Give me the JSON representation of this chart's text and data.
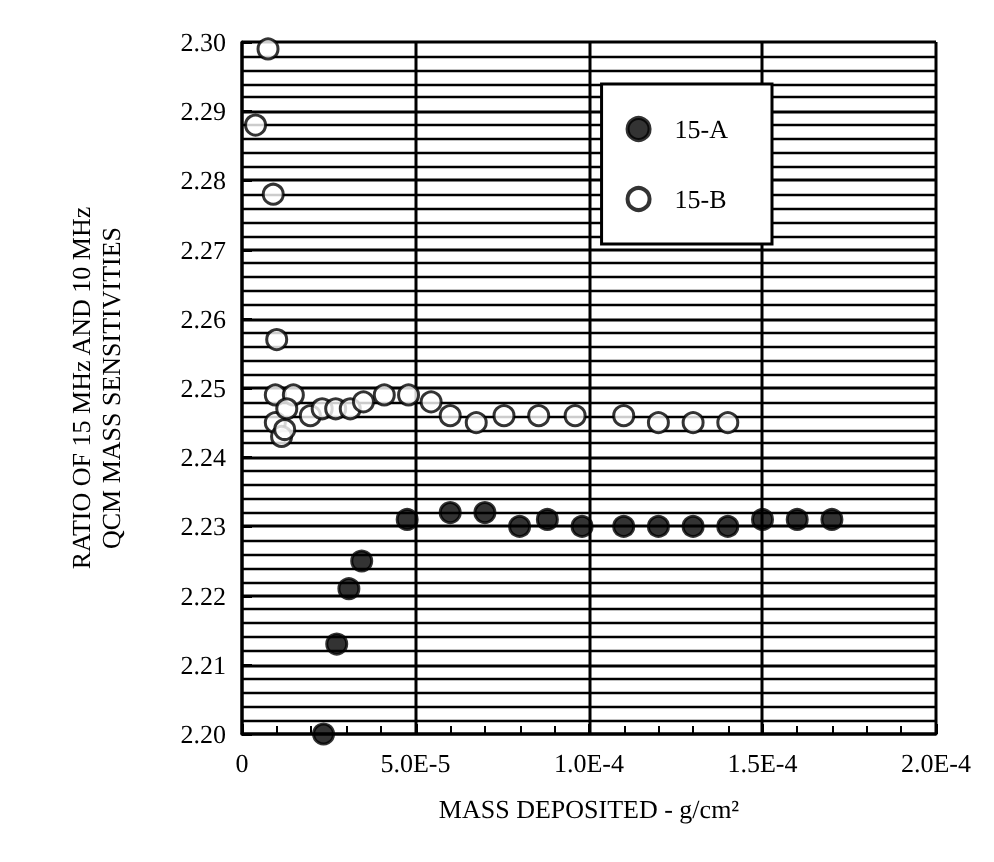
{
  "chart_data": {
    "type": "scatter",
    "xlabel": "MASS DEPOSITED - g/cm²",
    "ylabel": "RATIO OF 15 MHz AND 10 MHz\nQCM MASS SENSITIVITIES",
    "xlim": [
      0,
      0.0002
    ],
    "xticks": [
      {
        "value": 0,
        "label": "0"
      },
      {
        "value": 5e-05,
        "label": "5.0E-5"
      },
      {
        "value": 0.0001,
        "label": "1.0E-4"
      },
      {
        "value": 0.00015,
        "label": "1.5E-4"
      },
      {
        "value": 0.0002,
        "label": "2.0E-4"
      }
    ],
    "ylim": [
      2.2,
      2.3
    ],
    "yticks": [
      {
        "value": 2.2,
        "label": "2.20"
      },
      {
        "value": 2.21,
        "label": "2.21"
      },
      {
        "value": 2.22,
        "label": "2.22"
      },
      {
        "value": 2.23,
        "label": "2.23"
      },
      {
        "value": 2.24,
        "label": "2.24"
      },
      {
        "value": 2.25,
        "label": "2.25"
      },
      {
        "value": 2.26,
        "label": "2.26"
      },
      {
        "value": 2.27,
        "label": "2.27"
      },
      {
        "value": 2.28,
        "label": "2.28"
      },
      {
        "value": 2.29,
        "label": "2.29"
      },
      {
        "value": 2.3,
        "label": "2.30"
      }
    ],
    "grid": true,
    "legend": "top right",
    "marker": "circle",
    "series": [
      {
        "name": "15-A",
        "color": "#000000",
        "x": [
          2.35e-05,
          2.73e-05,
          3.08e-05,
          3.45e-05,
          4.76e-05,
          6e-05,
          7e-05,
          8e-05,
          8.8e-05,
          9.8e-05,
          0.00011,
          0.00012,
          0.00013,
          0.00014,
          0.00015,
          0.00016,
          0.00017
        ],
        "values": [
          2.2,
          2.213,
          2.221,
          2.225,
          2.231,
          2.232,
          2.232,
          2.23,
          2.231,
          2.23,
          2.23,
          2.23,
          2.23,
          2.23,
          2.231,
          2.231,
          2.231
        ]
      },
      {
        "name": "15-B",
        "color": "#ffffff",
        "x": [
          7.5e-06,
          3.9e-06,
          9e-06,
          1e-05,
          9.6e-06,
          1.48e-05,
          9.6e-06,
          1.29e-05,
          1.14e-05,
          1.23e-05,
          1.97e-05,
          2.31e-05,
          2.7e-05,
          3.12e-05,
          3.5e-05,
          4.1e-05,
          4.8e-05,
          5.45e-05,
          6e-05,
          6.75e-05,
          7.55e-05,
          8.55e-05,
          9.6e-05,
          0.00011,
          0.00012,
          0.00013,
          0.00014
        ],
        "values": [
          2.299,
          2.288,
          2.278,
          2.257,
          2.249,
          2.249,
          2.245,
          2.247,
          2.243,
          2.244,
          2.246,
          2.247,
          2.247,
          2.247,
          2.248,
          2.249,
          2.249,
          2.248,
          2.246,
          2.245,
          2.246,
          2.246,
          2.246,
          2.246,
          2.245,
          2.245,
          2.245
        ]
      }
    ]
  }
}
